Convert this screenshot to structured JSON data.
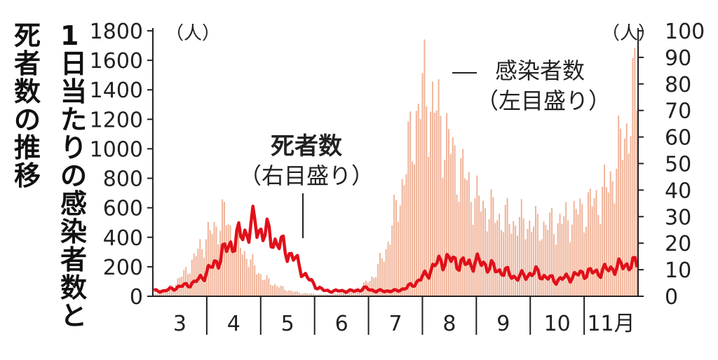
{
  "chart_data": {
    "type": "bar+line",
    "title": "1日当たりの感染者数と死者数の推移",
    "x_months": [
      "3",
      "4",
      "5",
      "6",
      "7",
      "8",
      "9",
      "10",
      "11月"
    ],
    "left_axis": {
      "unit": "（人）",
      "ylim": [
        0,
        1800
      ],
      "ticks": [
        "0",
        "200",
        "400",
        "600",
        "800",
        "1000",
        "1200",
        "1400",
        "1600",
        "1800"
      ]
    },
    "right_axis": {
      "unit": "（人）",
      "ylim": [
        0,
        100
      ],
      "ticks": [
        "0",
        "10",
        "20",
        "30",
        "40",
        "50",
        "60",
        "70",
        "80",
        "90",
        "100"
      ]
    },
    "series": [
      {
        "name": "感染者数",
        "note": "（左目盛り）",
        "axis": "left",
        "type": "bar",
        "color": "#f0b49a",
        "weekly_avg": [
          10,
          30,
          80,
          150,
          250,
          380,
          450,
          550,
          400,
          300,
          200,
          120,
          80,
          50,
          30,
          20,
          15,
          10,
          15,
          25,
          50,
          80,
          150,
          300,
          550,
          850,
          1200,
          1400,
          1250,
          1100,
          900,
          800,
          650,
          600,
          550,
          520,
          500,
          500,
          480,
          480,
          490,
          520,
          560,
          600,
          650,
          720,
          900,
          1150,
          1400
        ]
      },
      {
        "name": "死者数",
        "note": "（右目盛り）",
        "axis": "right",
        "type": "line",
        "color": "#e0101a",
        "weekly_avg": [
          2,
          2,
          3,
          4,
          5,
          8,
          12,
          17,
          21,
          24,
          27,
          24,
          21,
          18,
          14,
          8,
          4,
          2,
          2,
          2,
          2,
          3,
          2,
          2,
          2,
          3,
          5,
          8,
          12,
          14,
          13,
          12,
          13,
          12,
          10,
          9,
          7,
          8,
          9,
          7,
          6,
          7,
          8,
          9,
          9,
          10,
          11,
          12,
          12
        ]
      }
    ],
    "annotations": [
      {
        "text": "死者数",
        "sub": "（右目盛り）",
        "target": "死者数"
      },
      {
        "text": "感染者数",
        "sub": "（左目盛り）",
        "target": "感染者数"
      }
    ]
  }
}
